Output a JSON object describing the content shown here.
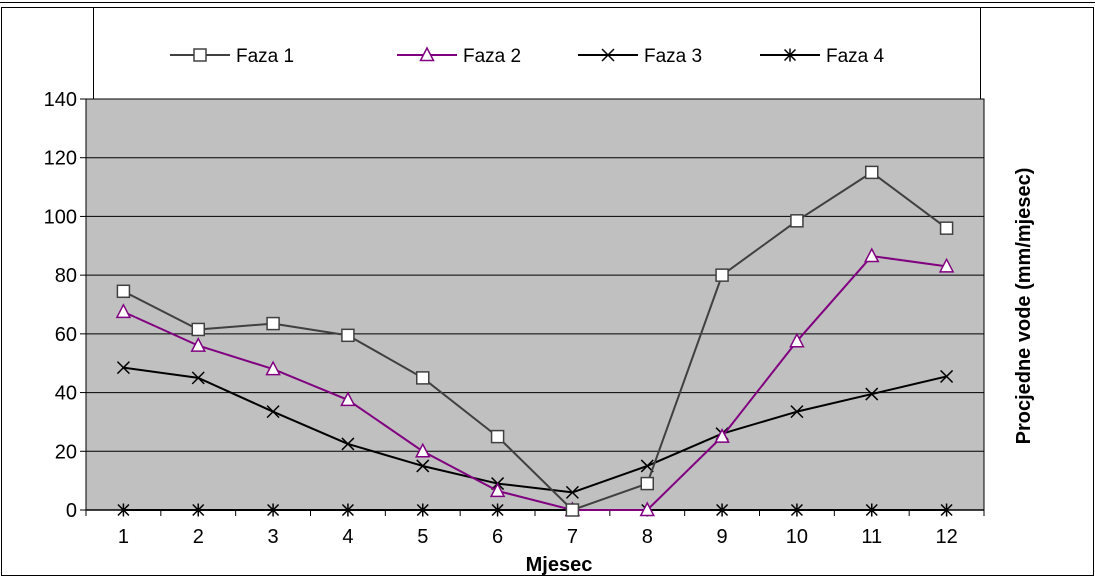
{
  "chart_data": {
    "type": "line",
    "xlabel": "Mjesec",
    "ylabel": "Procjedne vode (mm/mjesec)",
    "categories": [
      "1",
      "2",
      "3",
      "4",
      "5",
      "6",
      "7",
      "8",
      "9",
      "10",
      "11",
      "12"
    ],
    "ylim": [
      0,
      140
    ],
    "yticks": [
      0,
      20,
      40,
      60,
      80,
      100,
      120,
      140
    ],
    "grid": true,
    "legend_position": "top",
    "plot_background": "#c0c0c0",
    "series": [
      {
        "name": "Faza 1",
        "marker": "square",
        "color": "#404040",
        "values": [
          74.5,
          61.5,
          63.5,
          59.5,
          45,
          25,
          0,
          9,
          80,
          98.5,
          115,
          96
        ]
      },
      {
        "name": "Faza 2",
        "marker": "triangle",
        "color": "#800080",
        "values": [
          67.5,
          56,
          48,
          37.5,
          20,
          6.5,
          0,
          0,
          25,
          57.5,
          86.5,
          83
        ]
      },
      {
        "name": "Faza 3",
        "marker": "x",
        "color": "#000000",
        "values": [
          48.5,
          45,
          33.5,
          22.5,
          15,
          9,
          6,
          15,
          26,
          33.5,
          39.5,
          45.5
        ]
      },
      {
        "name": "Faza 4",
        "marker": "star",
        "color": "#000000",
        "values": [
          0,
          0,
          0,
          0,
          0,
          0,
          0,
          0,
          0,
          0,
          0,
          0
        ]
      }
    ]
  }
}
